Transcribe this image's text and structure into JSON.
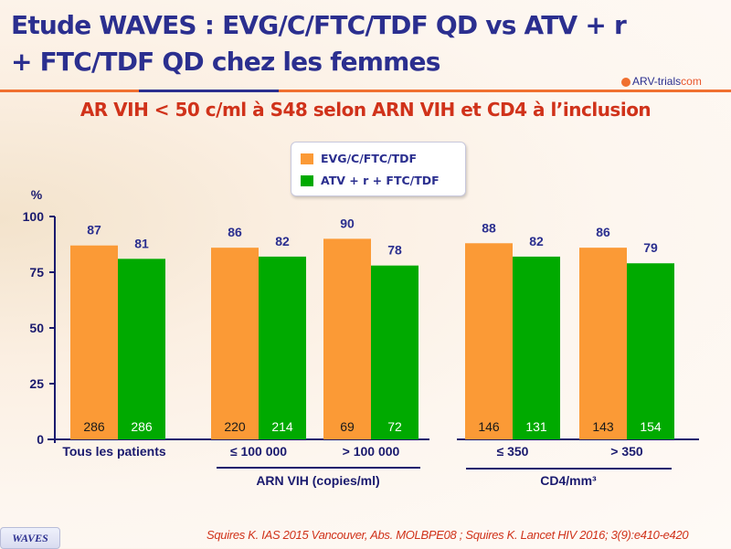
{
  "header": {
    "title_line1": "Etude WAVES : EVG/C/FTC/TDF QD vs ATV + r",
    "title_line2": "+ FTC/TDF QD chez les femmes",
    "logo_text": "ARV-trials",
    "logo_suffix": "com"
  },
  "subtitle": "AR VIH < 50 c/ml à S48 selon ARN VIH et CD4 à l’inclusion",
  "colors": {
    "title": "#2b2f8f",
    "subtitle": "#d0321a",
    "series1": "#fb9a36",
    "series2": "#00aa00",
    "axis": "#1a1a6e"
  },
  "chart_data": {
    "type": "bar",
    "title": "AR VIH < 50 c/ml à S48 selon ARN VIH et CD4 à l’inclusion",
    "ylabel": "%",
    "xlabel": "",
    "ylim": [
      0,
      100
    ],
    "yticks": [
      0,
      25,
      50,
      75,
      100
    ],
    "grid": false,
    "legend_position": "top-center",
    "categories": [
      "Tous les patients",
      "≤ 100 000",
      "> 100 000",
      "≤ 350",
      "> 350"
    ],
    "category_groups": [
      {
        "label": "ARN VIH (copies/ml)",
        "categories": [
          "≤ 100 000",
          "> 100 000"
        ]
      },
      {
        "label": "CD4/mm³",
        "categories": [
          "≤ 350",
          "> 350"
        ]
      }
    ],
    "series": [
      {
        "name": "EVG/C/FTC/TDF",
        "values": [
          87,
          86,
          90,
          88,
          86
        ],
        "n": [
          286,
          220,
          69,
          146,
          143
        ]
      },
      {
        "name": "ATV + r + FTC/TDF",
        "values": [
          81,
          82,
          78,
          82,
          79
        ],
        "n": [
          286,
          214,
          72,
          131,
          154
        ]
      }
    ]
  },
  "footer": {
    "badge": "WAVES",
    "reference": "Squires K. IAS 2015 Vancouver, Abs. MOLBPE08 ; Squires K. Lancet HIV 2016; 3(9):e410-e420"
  }
}
